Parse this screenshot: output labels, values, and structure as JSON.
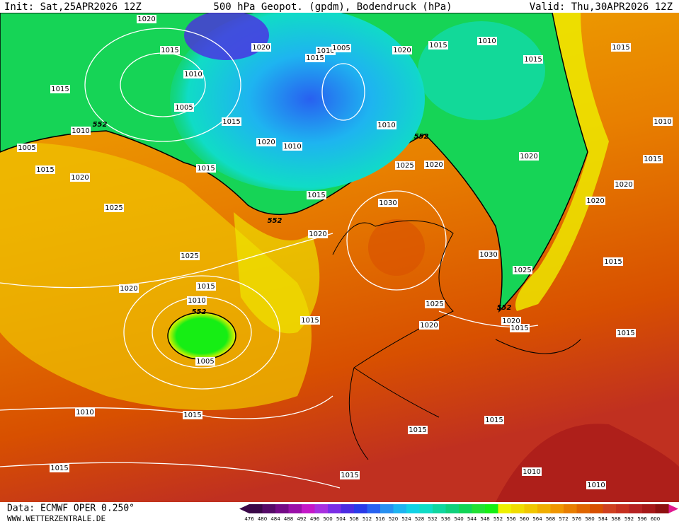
{
  "header": {
    "init": "Init: Sat,25APR2026 12Z",
    "title": "500 hPa Geopot. (gpdm), Bodendruck (hPa)",
    "valid": "Valid: Thu,30APR2026 12Z"
  },
  "footer": {
    "data": "Data: ECMWF OPER 0.250°",
    "site": "WWW.WETTERZENTRALE.DE"
  },
  "colorbar": {
    "labels": [
      476,
      480,
      484,
      488,
      492,
      496,
      500,
      504,
      508,
      512,
      516,
      520,
      524,
      528,
      532,
      536,
      540,
      544,
      548,
      552,
      556,
      560,
      564,
      568,
      572,
      576,
      580,
      584,
      588,
      592,
      596,
      600
    ],
    "colors": [
      "#3a0848",
      "#560a68",
      "#740a86",
      "#9a10a8",
      "#c418c8",
      "#a830e0",
      "#7a2ee6",
      "#4c2ce2",
      "#2a3ae8",
      "#2862f0",
      "#2890f0",
      "#1eb4f0",
      "#12d2e6",
      "#10dcc6",
      "#10d6a0",
      "#10d07c",
      "#12d456",
      "#22e034",
      "#16ee14",
      "#eef000",
      "#f0dc00",
      "#f0c600",
      "#f0ae00",
      "#f09600",
      "#e87e00",
      "#e06600",
      "#d85000",
      "#cf4020",
      "#c63020",
      "#b62222",
      "#a61818",
      "#8e1010"
    ]
  },
  "isobar_labels": [
    "1020",
    "1015",
    "1010",
    "1015",
    "1005",
    "1010",
    "552",
    "1005",
    "1015",
    "1020",
    "1025",
    "1015",
    "1015",
    "1020",
    "1010",
    "1020",
    "1010",
    "1005",
    "1015",
    "1010",
    "552",
    "1020",
    "1015",
    "1010",
    "1015",
    "1020",
    "1025",
    "1020",
    "1030",
    "1020",
    "552",
    "1015",
    "1025",
    "1020",
    "1015",
    "1010",
    "552",
    "1005",
    "1015",
    "1030",
    "1025",
    "1025",
    "552",
    "1020",
    "1020",
    "1015",
    "1015",
    "1010",
    "1015",
    "1020",
    "1020",
    "1015",
    "1015",
    "1010",
    "1015",
    "1015",
    "1015",
    "1015",
    "1015",
    "1010",
    "1010"
  ]
}
